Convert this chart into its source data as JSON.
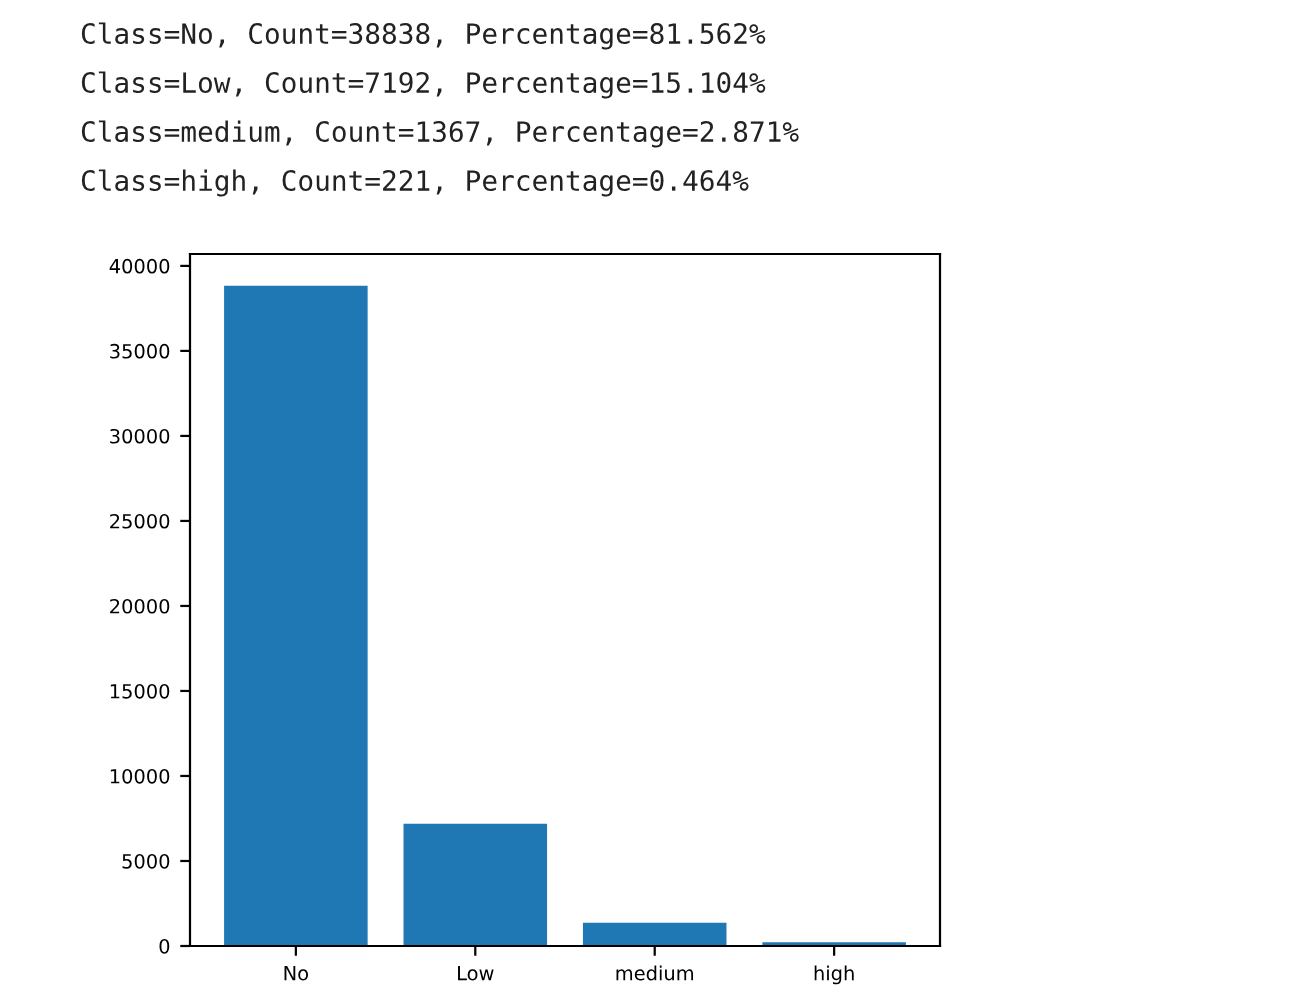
{
  "chart_data": {
    "type": "bar",
    "categories": [
      "No",
      "Low",
      "medium",
      "high"
    ],
    "values": [
      38838,
      7192,
      1367,
      221
    ],
    "color": "#1f77b4",
    "ylim": [
      0,
      40700
    ],
    "yticks": [
      0,
      5000,
      10000,
      15000,
      20000,
      25000,
      30000,
      35000,
      40000
    ],
    "grid": false,
    "legend": false,
    "annotations": [
      "Class=No, Count=38838, Percentage=81.562%",
      "Class=Low, Count=7192, Percentage=15.104%",
      "Class=medium, Count=1367, Percentage=2.871%",
      "Class=high, Count=221, Percentage=0.464%"
    ]
  }
}
